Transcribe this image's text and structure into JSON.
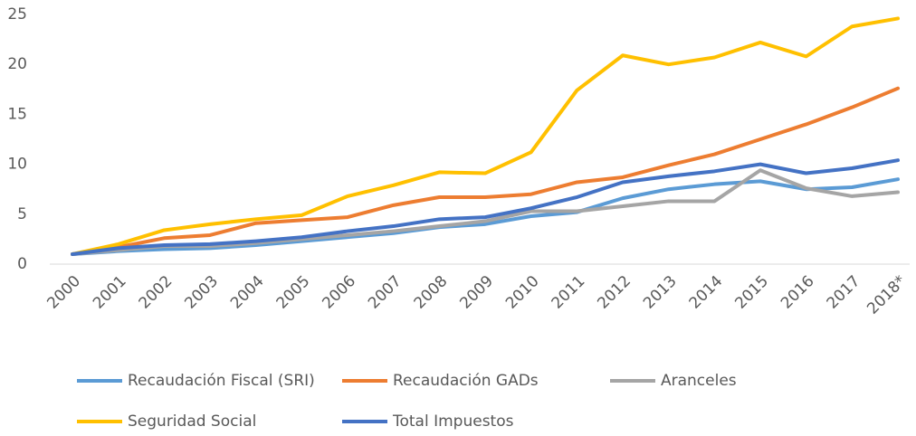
{
  "chart_data": {
    "type": "line",
    "categories": [
      "2000",
      "2001",
      "2002",
      "2003",
      "2004",
      "2005",
      "2006",
      "2007",
      "2008",
      "2009",
      "2010",
      "2011",
      "2012",
      "2013",
      "2014",
      "2015",
      "2016",
      "2017",
      "2018*"
    ],
    "ylim": [
      0,
      25
    ],
    "yticks": [
      0,
      5,
      10,
      15,
      20,
      25
    ],
    "grid": false,
    "legend": "bottom",
    "series": [
      {
        "name": "Recaudación Fiscal (SRI)",
        "color": "#5b9bd5",
        "values": [
          1,
          1.3,
          1.5,
          1.6,
          1.9,
          2.3,
          2.7,
          3.1,
          3.7,
          4.0,
          4.8,
          5.2,
          6.6,
          7.5,
          8.0,
          8.3,
          7.5,
          7.7,
          8.5
        ]
      },
      {
        "name": "Recaudación GADs",
        "color": "#ed7d31",
        "values": [
          1,
          1.7,
          2.6,
          2.9,
          4.1,
          4.4,
          4.7,
          5.9,
          6.7,
          6.7,
          7.0,
          8.2,
          8.7,
          9.9,
          11.0,
          12.5,
          14.0,
          15.7,
          17.6
        ]
      },
      {
        "name": "Aranceles",
        "color": "#a5a5a5",
        "values": [
          1,
          1.4,
          1.8,
          1.8,
          2.1,
          2.5,
          2.9,
          3.3,
          3.8,
          4.3,
          5.3,
          5.3,
          5.8,
          6.3,
          6.3,
          9.4,
          7.6,
          6.8,
          7.2
        ]
      },
      {
        "name": "Seguridad Social",
        "color": "#ffc000",
        "values": [
          1,
          2.0,
          3.4,
          4.0,
          4.5,
          4.9,
          6.8,
          7.9,
          9.2,
          9.1,
          11.2,
          17.4,
          20.9,
          20.0,
          20.7,
          22.2,
          20.8,
          23.8,
          24.6
        ]
      },
      {
        "name": "Total Impuestos",
        "color": "#4472c4",
        "values": [
          1,
          1.6,
          1.9,
          2.0,
          2.3,
          2.7,
          3.3,
          3.8,
          4.5,
          4.7,
          5.6,
          6.7,
          8.2,
          8.8,
          9.3,
          10.0,
          9.1,
          9.6,
          10.4
        ]
      }
    ]
  }
}
